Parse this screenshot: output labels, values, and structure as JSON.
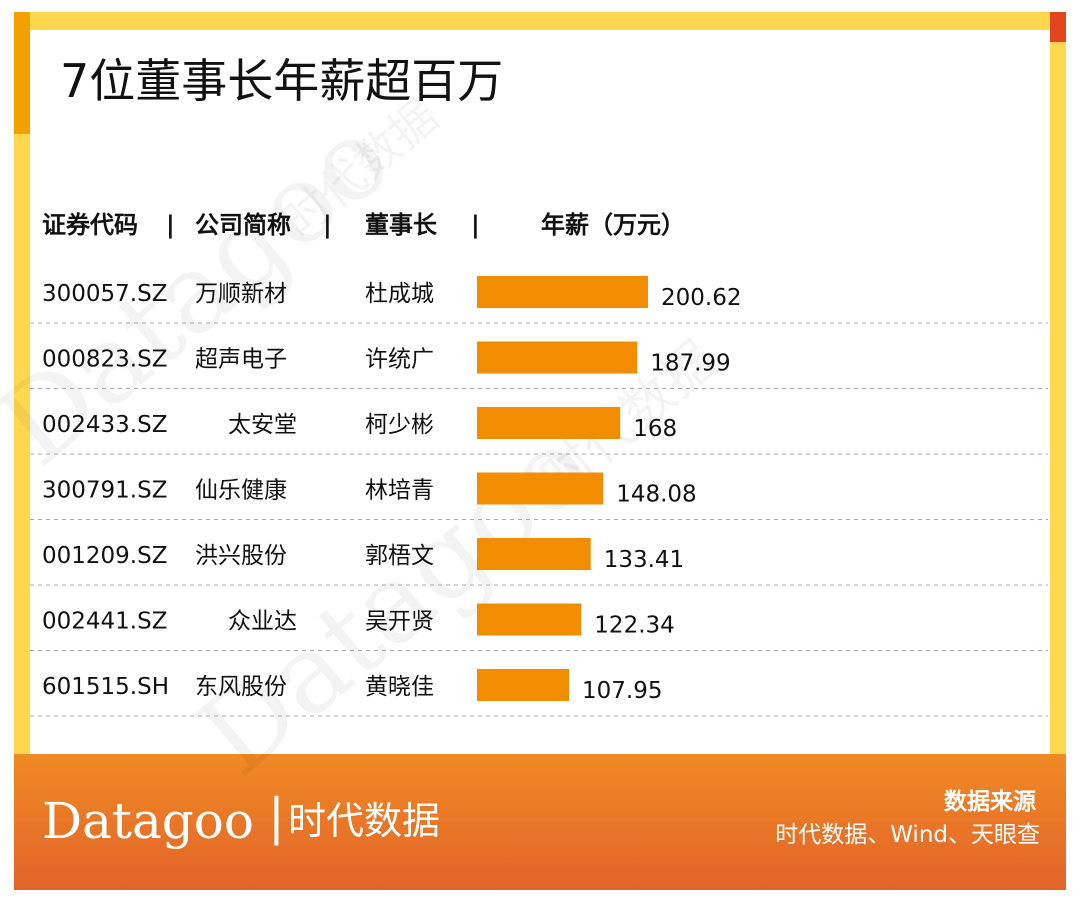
{
  "title": "7位董事长年薪超百万",
  "headers": {
    "code": "证券代码",
    "company": "公司简称",
    "chairman": "董事长",
    "salary": "年薪（万元）",
    "separator": "|"
  },
  "colors": {
    "bar": "#f28c00",
    "frame": "#ffd84f",
    "frame_accent": "#f2a100",
    "footer_top": "#f08a24",
    "footer_bottom": "#e2642a"
  },
  "chart_data": {
    "type": "bar",
    "orientation": "horizontal",
    "title": "7位董事长年薪超百万",
    "value_label": "年薪（万元）",
    "rows": [
      {
        "code": "300057.SZ",
        "company": "万顺新材",
        "chairman": "杜成城",
        "value": 200.62,
        "label": "200.62"
      },
      {
        "code": "000823.SZ",
        "company": "超声电子",
        "chairman": "许统广",
        "value": 187.99,
        "label": "187.99"
      },
      {
        "code": "002433.SZ",
        "company": "太安堂",
        "chairman": "柯少彬",
        "value": 168,
        "label": "168"
      },
      {
        "code": "300791.SZ",
        "company": "仙乐健康",
        "chairman": "林培青",
        "value": 148.08,
        "label": "148.08"
      },
      {
        "code": "001209.SZ",
        "company": "洪兴股份",
        "chairman": "郭梧文",
        "value": 133.41,
        "label": "133.41"
      },
      {
        "code": "002441.SZ",
        "company": "众业达",
        "chairman": "吴开贤",
        "value": 122.34,
        "label": "122.34"
      },
      {
        "code": "601515.SH",
        "company": "东风股份",
        "chairman": "黄晓佳",
        "value": 107.95,
        "label": "107.95"
      }
    ],
    "xlim": [
      0,
      200.62
    ],
    "grid": false
  },
  "watermark": {
    "en": "Datagoo",
    "cn": "时代数据"
  },
  "footer": {
    "brand_en": "Datagoo",
    "brand_sep": "|",
    "brand_cn": "时代数据",
    "source_title": "数据来源",
    "source_text": "时代数据、Wind、天眼查"
  }
}
